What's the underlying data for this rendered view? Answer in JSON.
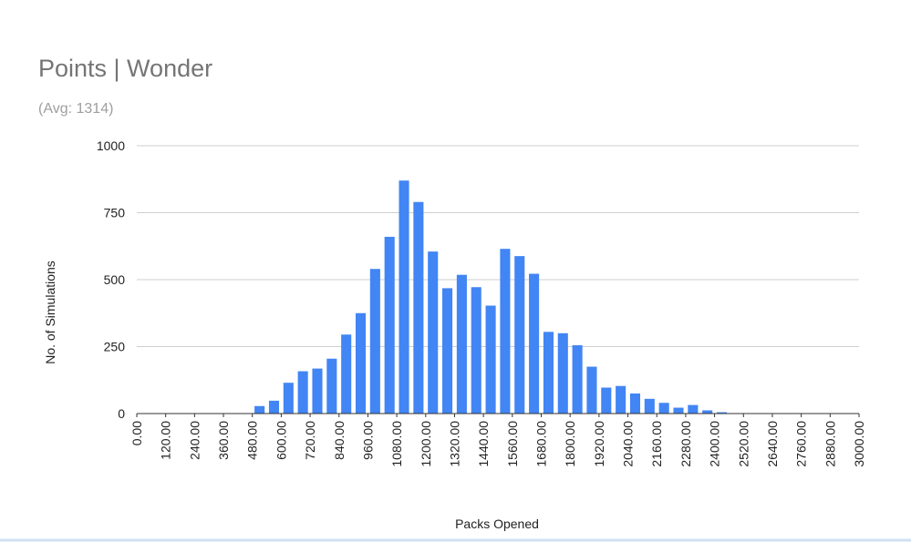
{
  "chart_data": {
    "type": "histogram",
    "title": "Points | Wonder",
    "subtitle": "(Avg: 1314)",
    "x_label": "Packs Opened",
    "y_label": "No. of Simulations",
    "color": "#4285f4",
    "grid": true,
    "bins": [
      0,
      60,
      120,
      180,
      240,
      300,
      360,
      420,
      480,
      540,
      600,
      660,
      720,
      780,
      840,
      900,
      960,
      1020,
      1080,
      1140,
      1200,
      1260,
      1320,
      1380,
      1440,
      1500,
      1560,
      1620,
      1680,
      1740,
      1800,
      1860,
      1920,
      1980,
      2040,
      2100,
      2160,
      2220,
      2280,
      2340,
      2400,
      2460,
      2520,
      2580,
      2640,
      2700,
      2760,
      2820,
      2880,
      2940,
      3000
    ],
    "counts": [
      0,
      0,
      0,
      0,
      0,
      0,
      0,
      0,
      28,
      48,
      115,
      158,
      168,
      205,
      295,
      375,
      540,
      660,
      870,
      790,
      605,
      468,
      518,
      472,
      403,
      615,
      588,
      522,
      305,
      300,
      255,
      175,
      97,
      103,
      75,
      55,
      40,
      22,
      32,
      12,
      5,
      0,
      0,
      0,
      0,
      0,
      0,
      0,
      0,
      0
    ],
    "xlim": [
      0,
      3000
    ],
    "xticks": [
      {
        "value": 0,
        "label": "0.00"
      },
      {
        "value": 120,
        "label": "120.00"
      },
      {
        "value": 240,
        "label": "240.00"
      },
      {
        "value": 360,
        "label": "360.00"
      },
      {
        "value": 480,
        "label": "480.00"
      },
      {
        "value": 600,
        "label": "600.00"
      },
      {
        "value": 720,
        "label": "720.00"
      },
      {
        "value": 840,
        "label": "840.00"
      },
      {
        "value": 960,
        "label": "960.00"
      },
      {
        "value": 1080,
        "label": "1080.00"
      },
      {
        "value": 1200,
        "label": "1200.00"
      },
      {
        "value": 1320,
        "label": "1320.00"
      },
      {
        "value": 1440,
        "label": "1440.00"
      },
      {
        "value": 1560,
        "label": "1560.00"
      },
      {
        "value": 1680,
        "label": "1680.00"
      },
      {
        "value": 1800,
        "label": "1800.00"
      },
      {
        "value": 1920,
        "label": "1920.00"
      },
      {
        "value": 2040,
        "label": "2040.00"
      },
      {
        "value": 2160,
        "label": "2160.00"
      },
      {
        "value": 2280,
        "label": "2280.00"
      },
      {
        "value": 2400,
        "label": "2400.00"
      },
      {
        "value": 2520,
        "label": "2520.00"
      },
      {
        "value": 2640,
        "label": "2640.00"
      },
      {
        "value": 2760,
        "label": "2760.00"
      },
      {
        "value": 2880,
        "label": "2880.00"
      },
      {
        "value": 3000,
        "label": "3000.00"
      }
    ],
    "ylim": [
      0,
      1000
    ],
    "yticks": [
      0,
      250,
      500,
      750,
      1000
    ]
  }
}
